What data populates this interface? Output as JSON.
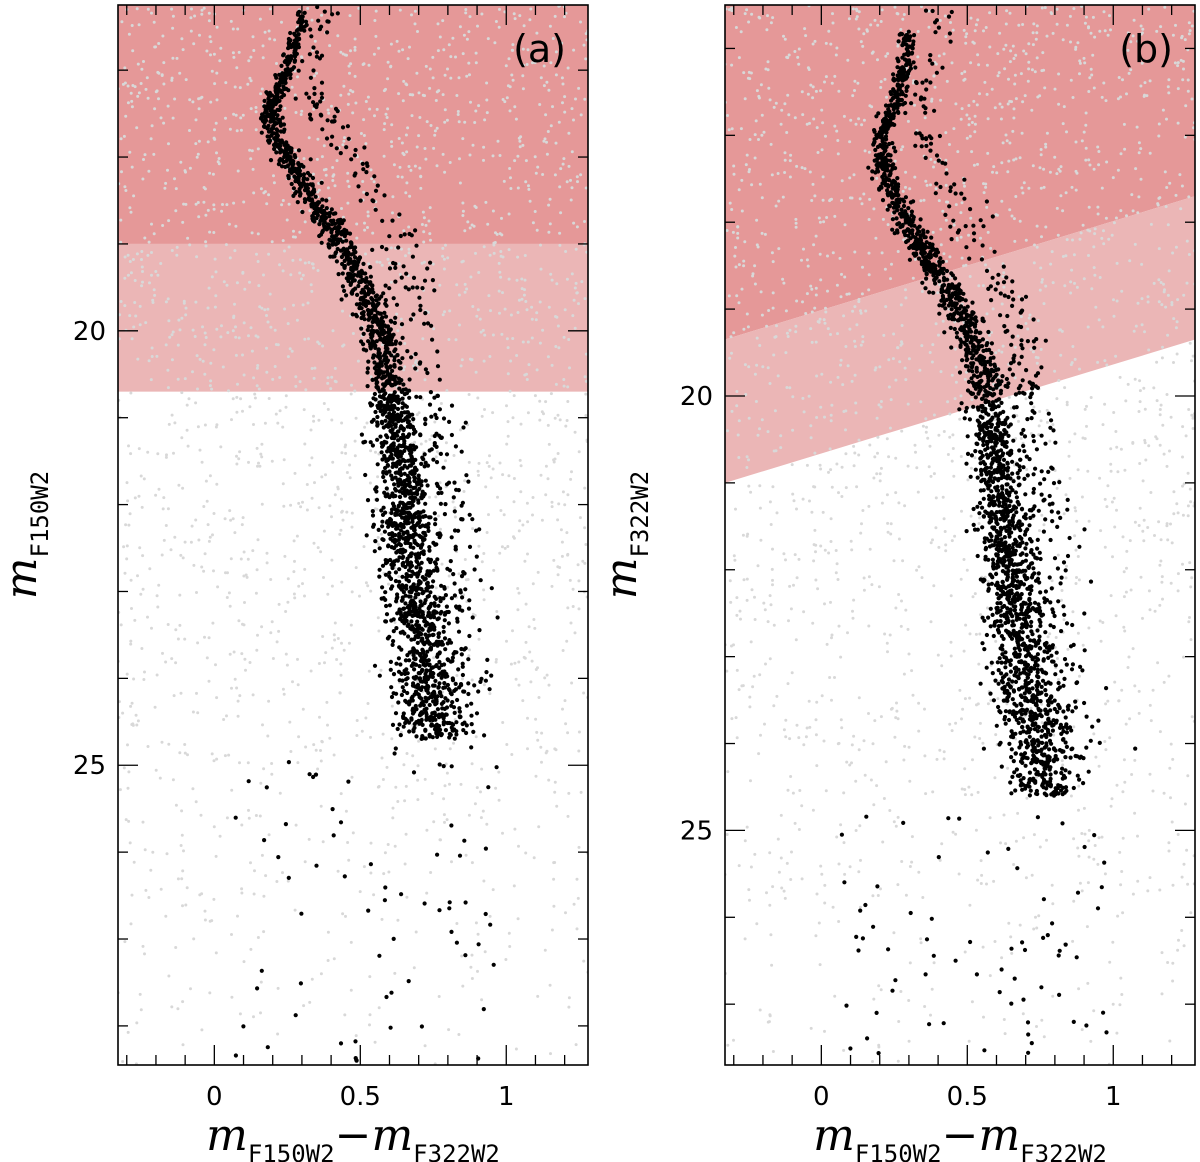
{
  "chart_data": [
    {
      "type": "scatter",
      "panel_label": "(a)",
      "xlabel": {
        "m1": "m",
        "sub1": "F150W2",
        "dash": "−",
        "m2": "m",
        "sub2": "F322W2"
      },
      "ylabel": {
        "m": "m",
        "sub": "F150W2"
      },
      "xlim": [
        -0.33,
        1.28
      ],
      "ylim": [
        28.45,
        16.25
      ],
      "xticks_major": [
        0,
        0.5,
        1
      ],
      "xticks_minor_step": 0.1,
      "yticks_major": [
        20,
        25
      ],
      "yticks_minor_step": 1,
      "xtick_labels": [
        "0",
        "0.5",
        "1"
      ],
      "ytick_labels": [
        "20",
        "25"
      ],
      "regions": [
        {
          "shape": "band",
          "y_bright": 16.25,
          "y_faint": 19.0,
          "color": "#e59898"
        },
        {
          "shape": "band",
          "y_bright": 19.0,
          "y_faint": 20.7,
          "color": "#ebb6b6"
        }
      ],
      "sequence": [
        [
          0.3,
          16.3
        ],
        [
          0.25,
          17.0
        ],
        [
          0.19,
          17.4
        ],
        [
          0.22,
          17.8
        ],
        [
          0.3,
          18.3
        ],
        [
          0.4,
          18.8
        ],
        [
          0.5,
          19.4
        ],
        [
          0.56,
          19.9
        ],
        [
          0.59,
          20.5
        ],
        [
          0.62,
          21.2
        ],
        [
          0.65,
          21.9
        ],
        [
          0.67,
          22.6
        ],
        [
          0.7,
          23.3
        ],
        [
          0.73,
          24.0
        ],
        [
          0.76,
          24.7
        ]
      ],
      "sequence_widths": [
        0.012,
        0.014,
        0.016,
        0.02,
        0.025,
        0.028,
        0.03,
        0.032,
        0.035,
        0.04,
        0.045,
        0.05,
        0.055,
        0.06,
        0.065
      ],
      "n_members": 2600,
      "n_field": 2100,
      "field_color": "#d8d8d8",
      "member_color": "#000000",
      "seed": 7
    },
    {
      "type": "scatter",
      "panel_label": "(b)",
      "xlabel": {
        "m1": "m",
        "sub1": "F150W2",
        "dash": "−",
        "m2": "m",
        "sub2": "F322W2"
      },
      "ylabel": {
        "m": "m",
        "sub": "F322W2"
      },
      "xlim": [
        -0.33,
        1.28
      ],
      "ylim": [
        27.7,
        15.5
      ],
      "xticks_major": [
        0,
        0.5,
        1
      ],
      "xticks_minor_step": 0.1,
      "yticks_major": [
        20,
        25
      ],
      "yticks_minor_step": 1,
      "xtick_labels": [
        "0",
        "0.5",
        "1"
      ],
      "ytick_labels": [
        "20",
        "25"
      ],
      "regions": [
        {
          "shape": "slanted",
          "upper_left": 15.5,
          "upper_right": 15.5,
          "lower_left": 19.35,
          "lower_right": 17.7,
          "color": "#e59898"
        },
        {
          "shape": "slanted",
          "upper_left": 19.35,
          "upper_right": 17.7,
          "lower_left": 21.0,
          "lower_right": 19.35,
          "color": "#ebb6b6"
        }
      ],
      "sequence": [
        [
          0.3,
          15.8
        ],
        [
          0.26,
          16.6
        ],
        [
          0.2,
          17.0
        ],
        [
          0.22,
          17.5
        ],
        [
          0.31,
          18.1
        ],
        [
          0.42,
          18.7
        ],
        [
          0.5,
          19.2
        ],
        [
          0.55,
          19.7
        ],
        [
          0.58,
          20.4
        ],
        [
          0.61,
          21.1
        ],
        [
          0.64,
          21.8
        ],
        [
          0.66,
          22.5
        ],
        [
          0.69,
          23.2
        ],
        [
          0.73,
          23.9
        ],
        [
          0.77,
          24.6
        ]
      ],
      "sequence_widths": [
        0.012,
        0.014,
        0.016,
        0.02,
        0.025,
        0.028,
        0.03,
        0.032,
        0.035,
        0.04,
        0.045,
        0.05,
        0.055,
        0.06,
        0.065
      ],
      "n_members": 2600,
      "n_field": 2000,
      "field_color": "#d8d8d8",
      "member_color": "#000000",
      "seed": 11
    }
  ]
}
